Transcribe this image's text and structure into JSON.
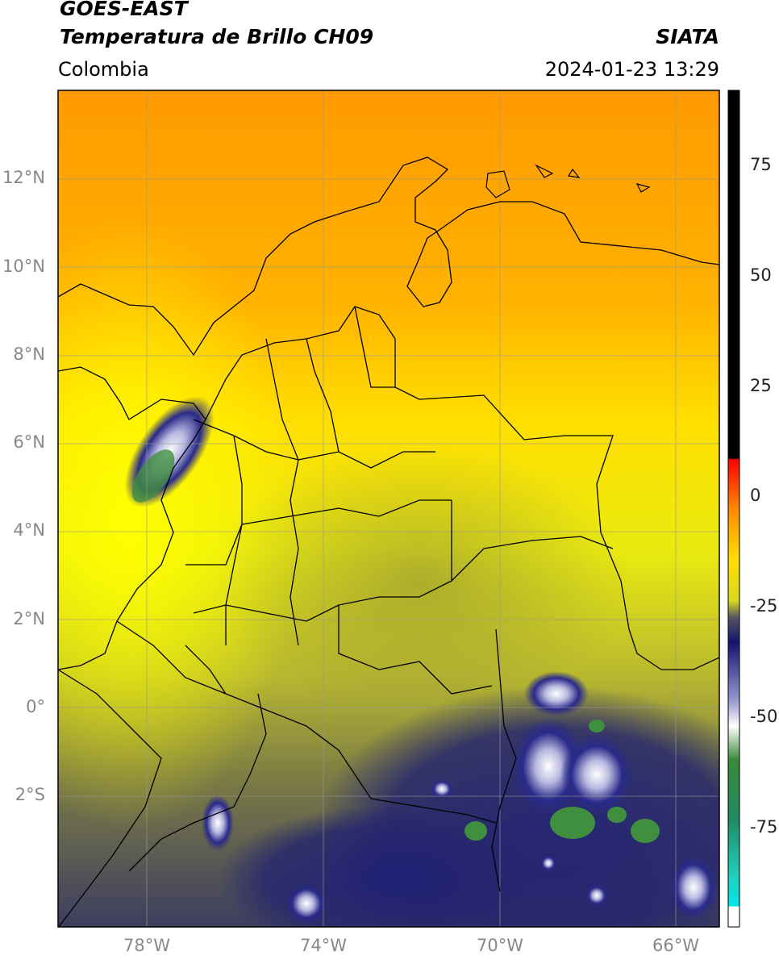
{
  "header": {
    "satellite": "GOES-EAST",
    "product": "Temperatura de Brillo CH09",
    "region": "Colombia",
    "source": "SIATA",
    "timestamp": "2024-01-23 13:29"
  },
  "map": {
    "lon_range": [
      -80.0,
      -65.0
    ],
    "lat_range": [
      -5.0,
      14.0
    ],
    "lat_ticks": [
      "12°N",
      "10°N",
      "8°N",
      "6°N",
      "4°N",
      "2°N",
      "0°",
      "2°S"
    ],
    "lon_ticks": [
      "78°W",
      "74°W",
      "70°W",
      "66°W"
    ],
    "gridlines": true
  },
  "colorbar": {
    "ticks": [
      "75",
      "50",
      "25",
      "0",
      "-25",
      "-50",
      "-75"
    ],
    "range": [
      -95,
      90
    ],
    "colors": {
      "above_8": "#000000",
      "warm": "#ff2a00",
      "orange": "#ff9900",
      "yellow": "#ffff00",
      "olive": "#8a8a30",
      "navy": "#1a1a7a",
      "white": "#ffffff",
      "green": "#3a8a3a",
      "teal": "#20c0a0",
      "cyan": "#00e5e5"
    }
  }
}
